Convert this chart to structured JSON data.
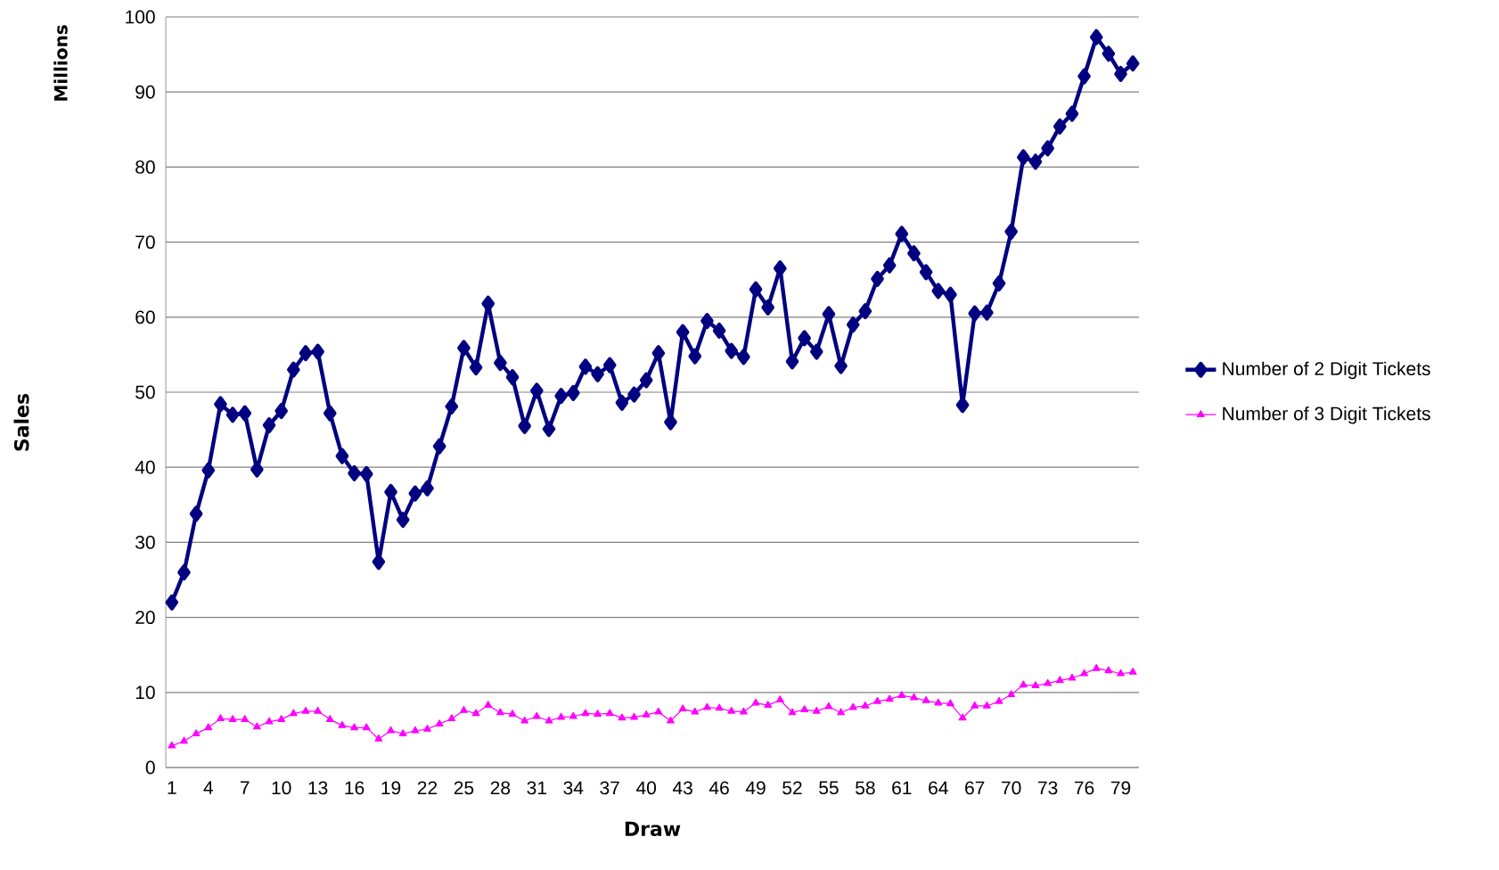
{
  "chart_data": {
    "type": "line",
    "xlabel": "Draw",
    "ylabel": "Sales",
    "annotations": [
      "Millions"
    ],
    "categories": [
      "1",
      null,
      null,
      "4",
      null,
      null,
      "7",
      null,
      null,
      "10",
      null,
      null,
      "13",
      null,
      null,
      "16",
      null,
      null,
      "19",
      null,
      null,
      "22",
      null,
      null,
      "25",
      null,
      null,
      "28",
      null,
      null,
      "31",
      null,
      null,
      "34",
      null,
      null,
      "37",
      null,
      null,
      "40",
      null,
      null,
      "43",
      null,
      null,
      "46",
      null,
      null,
      "49",
      null,
      null,
      "52",
      null,
      null,
      "55",
      null,
      null,
      "58",
      null,
      null,
      "61",
      null,
      null,
      "64",
      null,
      null,
      "67",
      null,
      null,
      "70",
      null,
      null,
      "73",
      null,
      null,
      "76",
      null,
      null,
      "79",
      null
    ],
    "series": [
      {
        "name": "Number of 2 Digit Tickets",
        "color": "#000080",
        "marker": "diamond",
        "values": [
          22,
          26,
          33.8,
          39.6,
          48.4,
          47,
          47.2,
          39.7,
          45.6,
          47.5,
          53,
          55.2,
          55.4,
          47.2,
          41.5,
          39.2,
          39.1,
          27.4,
          36.7,
          33,
          36.5,
          37.2,
          42.8,
          48.1,
          55.9,
          53.3,
          61.8,
          53.9,
          52,
          45.5,
          50.2,
          45.1,
          49.5,
          49.9,
          53.4,
          52.4,
          53.6,
          48.6,
          49.7,
          51.6,
          55.2,
          46,
          58,
          54.8,
          59.5,
          58.2,
          55.5,
          54.7,
          63.7,
          61.3,
          66.5,
          54.1,
          57.2,
          55.4,
          60.4,
          53.5,
          59,
          60.8,
          65.1,
          66.9,
          71.1,
          68.5,
          66,
          63.5,
          63,
          48.3,
          60.5,
          60.6,
          64.5,
          71.4,
          81.3,
          80.7,
          82.5,
          85.4,
          87.1,
          92.1,
          97.3,
          95.1,
          92.4,
          93.8
        ]
      },
      {
        "name": "Number of 3 Digit Tickets",
        "color": "#ff00ff",
        "marker": "triangle",
        "values": [
          2.9,
          3.5,
          4.5,
          5.3,
          6.5,
          6.4,
          6.4,
          5.4,
          6.1,
          6.4,
          7.2,
          7.5,
          7.5,
          6.4,
          5.6,
          5.3,
          5.3,
          3.8,
          4.9,
          4.5,
          4.9,
          5.1,
          5.8,
          6.5,
          7.6,
          7.2,
          8.3,
          7.3,
          7.1,
          6.2,
          6.8,
          6.2,
          6.7,
          6.8,
          7.2,
          7.1,
          7.2,
          6.6,
          6.7,
          7,
          7.4,
          6.2,
          7.8,
          7.4,
          8,
          7.9,
          7.5,
          7.4,
          8.6,
          8.3,
          9,
          7.3,
          7.7,
          7.5,
          8.1,
          7.3,
          8,
          8.2,
          8.8,
          9.1,
          9.6,
          9.3,
          8.9,
          8.6,
          8.5,
          6.6,
          8.2,
          8.2,
          8.8,
          9.7,
          11,
          10.9,
          11.2,
          11.6,
          11.9,
          12.5,
          13.2,
          12.9,
          12.5,
          12.7
        ]
      }
    ],
    "ylim": [
      0,
      100
    ],
    "yticks": [
      0,
      10,
      20,
      30,
      40,
      50,
      60,
      70,
      80,
      90,
      100
    ],
    "grid": "y",
    "legend": "right"
  }
}
